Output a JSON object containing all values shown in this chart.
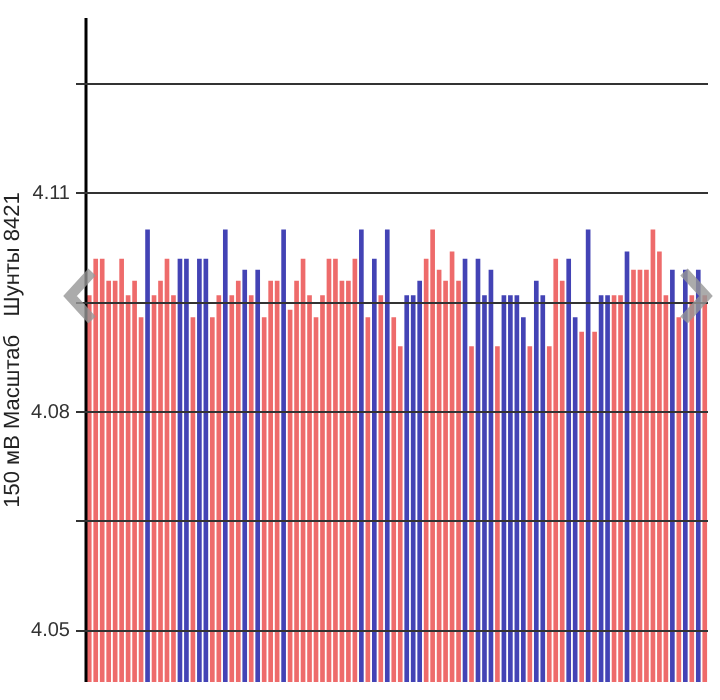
{
  "chart_data": {
    "type": "bar",
    "ylabel": "150 мВ Масштаб   Шунты 8421",
    "categories": [
      null,
      null,
      null,
      null,
      null,
      null,
      null,
      null,
      null,
      null,
      null,
      null,
      null,
      null,
      null,
      null,
      null,
      null,
      null,
      null,
      null,
      null,
      null,
      null,
      null,
      null,
      null,
      null,
      null,
      null,
      null,
      null,
      null,
      null,
      null,
      null,
      null,
      null,
      null,
      null,
      null,
      null,
      null,
      null,
      null,
      null,
      null,
      null,
      null,
      null,
      null,
      null,
      null,
      null,
      null,
      null,
      null,
      null,
      null,
      null,
      null,
      null,
      null,
      null,
      null,
      null,
      null,
      null,
      null,
      null,
      null,
      null,
      null,
      null,
      null,
      null,
      null,
      null,
      null,
      null,
      null,
      null,
      null,
      null,
      null,
      null,
      null,
      null,
      null,
      null,
      null,
      null,
      null,
      null,
      null,
      null
    ],
    "values": [
      4.096,
      4.101,
      4.101,
      4.098,
      4.098,
      4.101,
      4.096,
      4.098,
      4.093,
      4.105,
      4.096,
      4.098,
      4.101,
      4.096,
      4.101,
      4.101,
      4.093,
      4.101,
      4.101,
      4.093,
      4.096,
      4.105,
      4.096,
      4.098,
      4.0995,
      4.096,
      4.0995,
      4.093,
      4.098,
      4.098,
      4.105,
      4.094,
      4.098,
      4.101,
      4.096,
      4.093,
      4.096,
      4.101,
      4.101,
      4.098,
      4.098,
      4.101,
      4.105,
      4.093,
      4.101,
      4.096,
      4.105,
      4.093,
      4.089,
      4.096,
      4.096,
      4.098,
      4.101,
      4.105,
      4.0995,
      4.098,
      4.102,
      4.098,
      4.101,
      4.089,
      4.101,
      4.096,
      4.0995,
      4.089,
      4.096,
      4.096,
      4.096,
      4.093,
      4.089,
      4.098,
      4.096,
      4.089,
      4.101,
      4.098,
      4.101,
      4.093,
      4.091,
      4.105,
      4.091,
      4.096,
      4.096,
      4.096,
      4.096,
      4.102,
      4.0995,
      4.0995,
      4.0995,
      4.105,
      4.102,
      4.096,
      4.0995,
      4.093,
      4.0995,
      4.096,
      4.0995,
      4.096
    ],
    "colors": [
      "#ee6b6b",
      "#ee6b6b",
      "#ee6b6b",
      "#ee6b6b",
      "#ee6b6b",
      "#ee6b6b",
      "#ee6b6b",
      "#ee6b6b",
      "#ee6b6b",
      "#4343b5",
      "#ee6b6b",
      "#ee6b6b",
      "#ee6b6b",
      "#ee6b6b",
      "#4343b5",
      "#4343b5",
      "#ee6b6b",
      "#4343b5",
      "#4343b5",
      "#ee6b6b",
      "#ee6b6b",
      "#4343b5",
      "#ee6b6b",
      "#ee6b6b",
      "#4343b5",
      "#ee6b6b",
      "#4343b5",
      "#ee6b6b",
      "#ee6b6b",
      "#ee6b6b",
      "#4343b5",
      "#ee6b6b",
      "#ee6b6b",
      "#ee6b6b",
      "#ee6b6b",
      "#ee6b6b",
      "#ee6b6b",
      "#ee6b6b",
      "#ee6b6b",
      "#ee6b6b",
      "#ee6b6b",
      "#ee6b6b",
      "#4343b5",
      "#ee6b6b",
      "#4343b5",
      "#ee6b6b",
      "#4343b5",
      "#ee6b6b",
      "#ee6b6b",
      "#4343b5",
      "#4343b5",
      "#4343b5",
      "#ee6b6b",
      "#ee6b6b",
      "#ee6b6b",
      "#ee6b6b",
      "#ee6b6b",
      "#ee6b6b",
      "#4343b5",
      "#ee6b6b",
      "#4343b5",
      "#4343b5",
      "#4343b5",
      "#ee6b6b",
      "#4343b5",
      "#4343b5",
      "#4343b5",
      "#4343b5",
      "#ee6b6b",
      "#4343b5",
      "#4343b5",
      "#ee6b6b",
      "#ee6b6b",
      "#ee6b6b",
      "#4343b5",
      "#4343b5",
      "#ee6b6b",
      "#4343b5",
      "#ee6b6b",
      "#4343b5",
      "#4343b5",
      "#ee6b6b",
      "#ee6b6b",
      "#4343b5",
      "#ee6b6b",
      "#ee6b6b",
      "#ee6b6b",
      "#ee6b6b",
      "#ee6b6b",
      "#ee6b6b",
      "#4343b5",
      "#ee6b6b",
      "#4343b5",
      "#ee6b6b",
      "#4343b5",
      "#ee6b6b"
    ],
    "ylim": [
      4.043,
      4.134
    ],
    "yticks": [
      4.05,
      {
        "value": 4.065,
        "label": null
      },
      4.08,
      {
        "value": 4.095,
        "label": null
      },
      4.11,
      {
        "value": 4.125,
        "label": null
      }
    ],
    "grid": "y",
    "tick_labels": "y"
  }
}
